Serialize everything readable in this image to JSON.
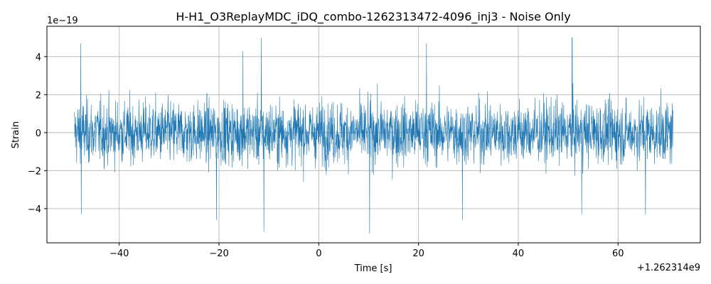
{
  "chart_data": {
    "type": "line",
    "title": "H-H1_O3ReplayMDC_iDQ_combo-1262313472-4096_inj3 - Noise Only",
    "xlabel": "Time [s]",
    "ylabel": "Strain",
    "x_offset_label": "+1.262314e9",
    "y_scale_label": "1e−19",
    "xlim": [
      -54.5,
      76.5
    ],
    "ylim": [
      -5.8,
      5.6
    ],
    "x_ticks": [
      -40,
      -20,
      0,
      20,
      40,
      60
    ],
    "x_tick_labels": [
      "−40",
      "−20",
      "0",
      "20",
      "40",
      "60"
    ],
    "y_ticks": [
      -4,
      -2,
      0,
      2,
      4
    ],
    "y_tick_labels": [
      "−4",
      "−2",
      "0",
      "2",
      "4"
    ],
    "grid": true,
    "legend": "none",
    "series": [
      {
        "color": "#1f77b4",
        "x_range": [
          -49,
          71
        ],
        "description_peaks": [
          {
            "x": -47.7,
            "y": 4.7
          },
          {
            "x": -47.6,
            "y": -4.3
          },
          {
            "x": -20.5,
            "y": -4.6
          },
          {
            "x": -15.2,
            "y": 4.3
          },
          {
            "x": -11.5,
            "y": 5.0
          },
          {
            "x": -11.0,
            "y": -5.2
          },
          {
            "x": 10.2,
            "y": -5.3
          },
          {
            "x": 28.8,
            "y": -4.6
          },
          {
            "x": 21.6,
            "y": 4.7
          },
          {
            "x": 50.8,
            "y": 5.0
          },
          {
            "x": 52.7,
            "y": -4.3
          },
          {
            "x": 65.5,
            "y": -4.3
          }
        ],
        "typical_amplitude": 2.1
      }
    ]
  }
}
